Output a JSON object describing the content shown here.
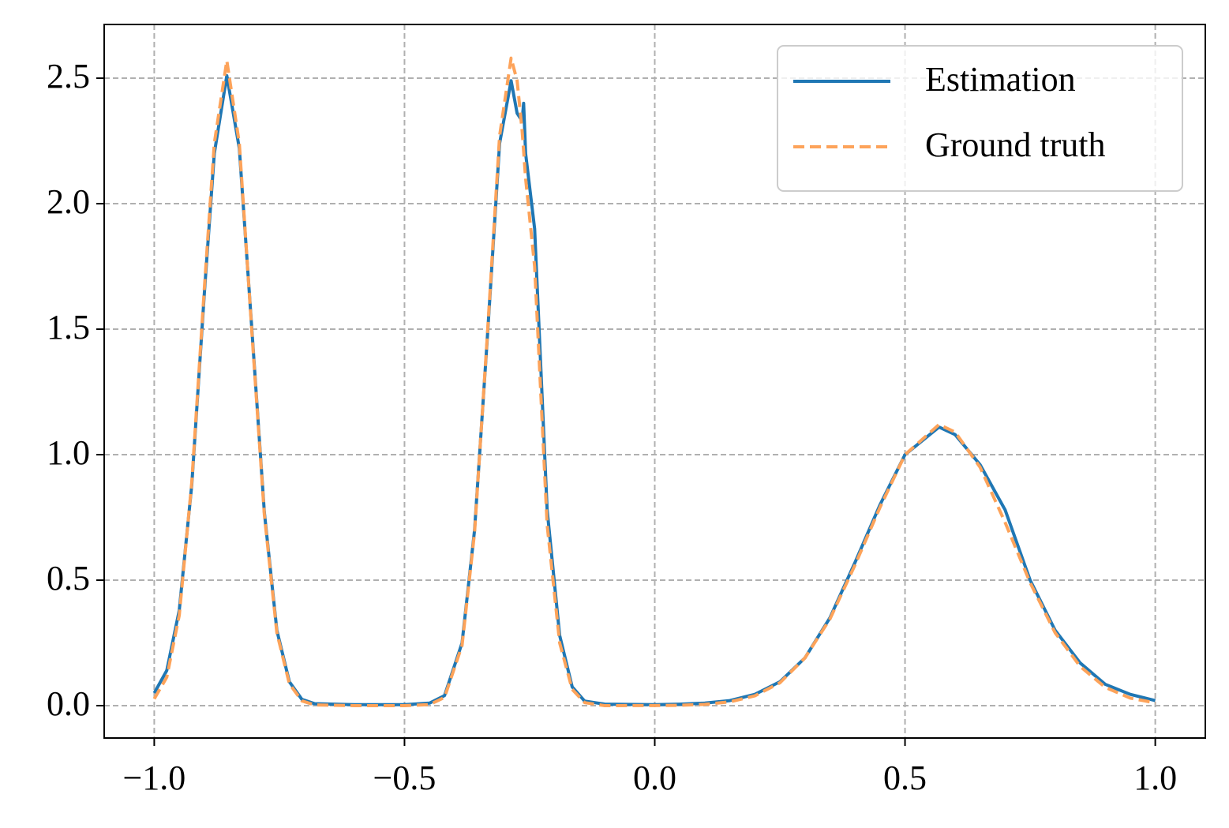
{
  "chart_data": {
    "type": "line",
    "x": [
      -1,
      -0.975,
      -0.95,
      -0.925,
      -0.9,
      -0.88,
      -0.855,
      -0.83,
      -0.805,
      -0.78,
      -0.755,
      -0.73,
      -0.705,
      -0.68,
      -0.6,
      -0.5,
      -0.45,
      -0.42,
      -0.385,
      -0.36,
      -0.335,
      -0.31,
      -0.287,
      -0.275,
      -0.265,
      -0.262,
      -0.258,
      -0.24,
      -0.215,
      -0.19,
      -0.165,
      -0.14,
      -0.1,
      0,
      0.05,
      0.1,
      0.15,
      0.2,
      0.25,
      0.3,
      0.35,
      0.4,
      0.45,
      0.5,
      0.568,
      0.6,
      0.65,
      0.7,
      0.75,
      0.8,
      0.85,
      0.9,
      0.95,
      1.0
    ],
    "series": [
      {
        "name": "Estimation",
        "color": "#1f77b4",
        "linestyle": "solid",
        "values": [
          0.05,
          0.14,
          0.38,
          0.88,
          1.64,
          2.2,
          2.51,
          2.22,
          1.5,
          0.77,
          0.3,
          0.095,
          0.025,
          0.008,
          0.004,
          0.004,
          0.01,
          0.04,
          0.25,
          0.7,
          1.45,
          2.24,
          2.49,
          2.36,
          2.33,
          2.4,
          2.2,
          1.9,
          0.78,
          0.28,
          0.075,
          0.018,
          0.006,
          0.004,
          0.006,
          0.01,
          0.02,
          0.045,
          0.095,
          0.19,
          0.35,
          0.57,
          0.8,
          1.0,
          1.11,
          1.08,
          0.96,
          0.78,
          0.5,
          0.3,
          0.17,
          0.085,
          0.045,
          0.02
        ]
      },
      {
        "name": "Ground truth",
        "color": "#fda35a",
        "linestyle": "dashed",
        "values": [
          0.027,
          0.113,
          0.36,
          0.89,
          1.66,
          2.24,
          2.57,
          2.24,
          1.49,
          0.76,
          0.29,
          0.087,
          0.019,
          0.003,
          0,
          0,
          0.004,
          0.033,
          0.24,
          0.69,
          1.46,
          2.27,
          2.58,
          2.49,
          2.29,
          2.21,
          2.1,
          1.75,
          0.72,
          0.25,
          0.065,
          0.012,
          0,
          0.0004,
          0.0014,
          0.005,
          0.015,
          0.039,
          0.091,
          0.19,
          0.345,
          0.56,
          0.79,
          1.0,
          1.12,
          1.09,
          0.95,
          0.73,
          0.49,
          0.29,
          0.156,
          0.073,
          0.03,
          0.011
        ]
      }
    ],
    "xlim": [
      -1.1,
      1.1
    ],
    "ylim": [
      -0.129,
      2.714
    ],
    "xticks": [
      {
        "value": -1,
        "label": "−1.0"
      },
      {
        "value": -0.5,
        "label": "−0.5"
      },
      {
        "value": 0,
        "label": "0.0"
      },
      0.5,
      {
        "value": 1,
        "label": "1.0"
      }
    ],
    "yticks": [
      {
        "value": 0,
        "label": "0.0"
      },
      0.5,
      {
        "value": 1,
        "label": "1.0"
      },
      1.5,
      {
        "value": 2,
        "label": "2.0"
      },
      2.5
    ],
    "grid": true,
    "legend": "upper right"
  }
}
